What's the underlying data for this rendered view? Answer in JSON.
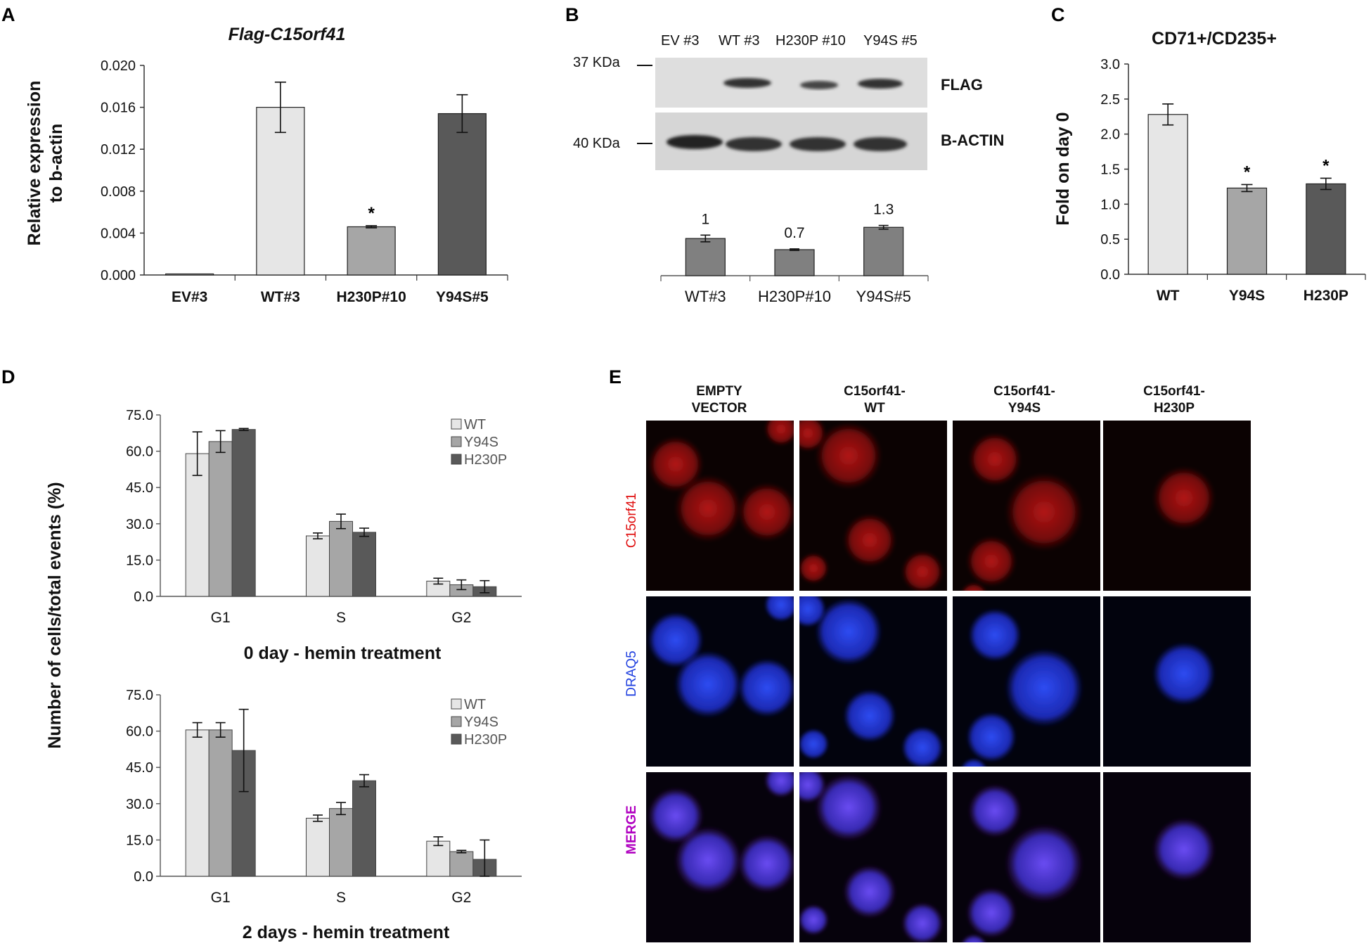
{
  "panels": {
    "A": "A",
    "B": "B",
    "C": "C",
    "D": "D",
    "E": "E"
  },
  "colors": {
    "wt": "#e6e6e6",
    "y94s": "#a6a6a6",
    "h230p": "#595959",
    "dark": "#555555",
    "mid": "#808080",
    "red_channel": "#e01010",
    "blue_channel": "#2040e0",
    "merge_label": "#b000c0"
  },
  "chart_data": [
    {
      "id": "A",
      "type": "bar",
      "title": "Flag-C15orf41",
      "ylabel_lines": [
        "Relative expression",
        "to b-actin"
      ],
      "categories": [
        "EV#3",
        "WT#3",
        "H230P#10",
        "Y94S#5"
      ],
      "values": [
        0.0001,
        0.016,
        0.0046,
        0.0154
      ],
      "errors": [
        0,
        0.0024,
        0.0001,
        0.0018
      ],
      "bar_colors": [
        "#e6e6e6",
        "#e6e6e6",
        "#a6a6a6",
        "#595959"
      ],
      "significance": [
        "",
        "",
        "*",
        ""
      ],
      "ylim": [
        0,
        0.02
      ],
      "yticks": [
        "0.000",
        "0.004",
        "0.008",
        "0.012",
        "0.016",
        "0.020"
      ]
    },
    {
      "id": "B",
      "type": "bar",
      "categories": [
        "WT#3",
        "H230P#10",
        "Y94S#5"
      ],
      "values": [
        1.0,
        0.7,
        1.3
      ],
      "errors": [
        0.09,
        0.02,
        0.05
      ],
      "value_labels": [
        "1",
        "0.7",
        "1.3"
      ],
      "ylim": [
        0,
        2.4
      ]
    },
    {
      "id": "C",
      "type": "bar",
      "title": "CD71+/CD235+",
      "ylabel": "Fold on day 0",
      "categories": [
        "WT",
        "Y94S",
        "H230P"
      ],
      "values": [
        2.28,
        1.23,
        1.29
      ],
      "errors": [
        0.15,
        0.05,
        0.08
      ],
      "bar_colors": [
        "#e6e6e6",
        "#a6a6a6",
        "#595959"
      ],
      "significance": [
        "",
        "*",
        "*"
      ],
      "ylim": [
        0,
        3.0
      ],
      "yticks": [
        "0.0",
        "0.5",
        "1.0",
        "1.5",
        "2.0",
        "2.5",
        "3.0"
      ]
    },
    {
      "id": "D1",
      "type": "bar",
      "xlabel": "0 day - hemin treatment",
      "categories": [
        "G1",
        "S",
        "G2"
      ],
      "series": [
        {
          "name": "WT",
          "values": [
            59,
            25,
            6.3
          ],
          "errors": [
            9,
            1.2,
            1.2
          ]
        },
        {
          "name": "Y94S",
          "values": [
            64,
            31,
            4.8
          ],
          "errors": [
            4.5,
            3,
            2
          ]
        },
        {
          "name": "H230P",
          "values": [
            69,
            26.5,
            4
          ],
          "errors": [
            0.4,
            1.7,
            2.5
          ]
        }
      ],
      "ylim": [
        0,
        75
      ],
      "yticks": [
        "0.0",
        "15.0",
        "30.0",
        "45.0",
        "60.0",
        "75.0"
      ]
    },
    {
      "id": "D2",
      "type": "bar",
      "xlabel": "2 days - hemin treatment",
      "categories": [
        "G1",
        "S",
        "G2"
      ],
      "series": [
        {
          "name": "WT",
          "values": [
            60.5,
            24,
            14.5
          ],
          "errors": [
            3,
            1.3,
            1.8
          ]
        },
        {
          "name": "Y94S",
          "values": [
            60.5,
            28,
            10.2
          ],
          "errors": [
            3,
            2.5,
            0.5
          ]
        },
        {
          "name": "H230P",
          "values": [
            52,
            39.5,
            7
          ],
          "errors": [
            17,
            2.5,
            8
          ]
        }
      ],
      "ylim": [
        0,
        75
      ],
      "yticks": [
        "0.0",
        "15.0",
        "30.0",
        "45.0",
        "60.0",
        "75.0"
      ]
    }
  ],
  "panel_d_ylabel": "Number of cells/total events (%)",
  "blot": {
    "lanes": [
      "EV #3",
      "WT #3",
      "H230P #10",
      "Y94S #5"
    ],
    "markers": [
      "37 KDa",
      "40 KDa"
    ],
    "bands": [
      "FLAG",
      "B-ACTIN"
    ]
  },
  "micro": {
    "columns": [
      [
        "EMPTY",
        "VECTOR"
      ],
      [
        "C15orf41-",
        "WT"
      ],
      [
        "C15orf41-",
        "Y94S"
      ],
      [
        "C15orf41-",
        "H230P"
      ]
    ],
    "rows": [
      "C15orf41",
      "DRAQ5",
      "MERGE"
    ]
  }
}
